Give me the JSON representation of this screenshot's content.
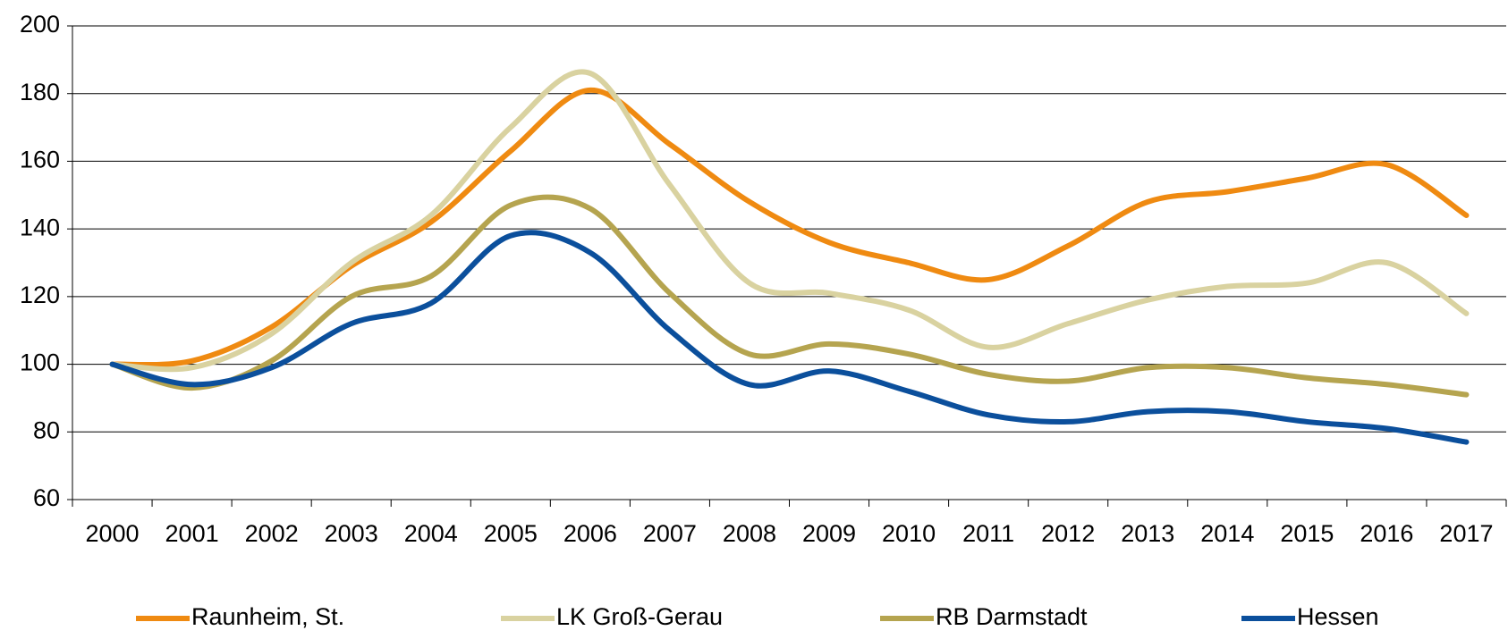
{
  "chart_data": {
    "type": "line",
    "categories": [
      "2000",
      "2001",
      "2002",
      "2003",
      "2004",
      "2005",
      "2006",
      "2007",
      "2008",
      "2009",
      "2010",
      "2011",
      "2012",
      "2013",
      "2014",
      "2015",
      "2016",
      "2017"
    ],
    "series": [
      {
        "name": "Raunheim, St.",
        "color": "#ef8a11",
        "values": [
          100,
          101,
          111,
          129,
          142,
          163,
          181,
          165,
          148,
          136,
          130,
          125,
          135,
          148,
          151,
          155,
          159,
          144
        ]
      },
      {
        "name": "LK Groß-Gerau",
        "color": "#d9d2a0",
        "values": [
          100,
          99,
          109,
          130,
          144,
          170,
          186,
          153,
          124,
          121,
          116,
          105,
          112,
          119,
          123,
          124,
          130,
          115
        ]
      },
      {
        "name": "RB Darmstadt",
        "color": "#b5a44f",
        "values": [
          100,
          93,
          101,
          120,
          126,
          147,
          146,
          121,
          103,
          106,
          103,
          97,
          95,
          99,
          99,
          96,
          94,
          91
        ]
      },
      {
        "name": "Hessen",
        "color": "#0b4f9c",
        "values": [
          100,
          94,
          99,
          112,
          118,
          138,
          133,
          110,
          94,
          98,
          92,
          85,
          83,
          86,
          86,
          83,
          81,
          77
        ]
      }
    ],
    "ylim": [
      60,
      200
    ],
    "yticks": [
      60,
      80,
      100,
      120,
      140,
      160,
      180,
      200
    ],
    "grid": true
  }
}
